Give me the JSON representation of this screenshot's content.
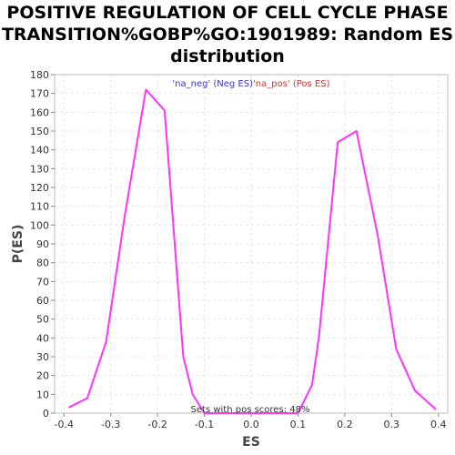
{
  "chart_data": {
    "type": "line",
    "title_lines": [
      "POSITIVE REGULATION OF CELL CYCLE PHASE",
      "TRANSITION%GOBP%GO:1901989: Random ES",
      "distribution"
    ],
    "xlabel": "ES",
    "ylabel": "P(ES)",
    "xlim": [
      -0.42,
      0.42
    ],
    "ylim": [
      0,
      180
    ],
    "xticks": [
      "-0.4",
      "-0.3",
      "-0.2",
      "-0.1",
      "0.0",
      "0.1",
      "0.2",
      "0.3",
      "0.4"
    ],
    "xtick_values": [
      -0.4,
      -0.3,
      -0.2,
      -0.1,
      0.0,
      0.1,
      0.2,
      0.3,
      0.4
    ],
    "yticks": [
      0,
      10,
      20,
      30,
      40,
      50,
      60,
      70,
      80,
      90,
      100,
      110,
      120,
      130,
      140,
      150,
      160,
      170,
      180
    ],
    "grid": true,
    "legend": [
      {
        "label": "'na_neg' (Neg ES)",
        "color": "#3333cc"
      },
      {
        "label": "'na_pos' (Pos ES)",
        "color": "#cc3333"
      }
    ],
    "legend_placement": "top-center",
    "series": [
      {
        "color": "#ff33ff",
        "x": [
          -0.39,
          -0.35,
          -0.31,
          -0.27,
          -0.225,
          -0.185,
          -0.145,
          -0.125,
          -0.1,
          0.1,
          0.13,
          0.145,
          0.185,
          0.225,
          0.27,
          0.31,
          0.35,
          0.395
        ],
        "y": [
          3,
          8,
          38,
          105,
          172,
          161,
          30,
          10,
          0,
          0,
          15,
          41,
          144,
          150,
          95,
          34,
          12,
          2
        ]
      }
    ],
    "annotation": "Sets with pos scores: 48%",
    "line_color": "#ff33ff",
    "grid_color": "#e6e6e6"
  }
}
